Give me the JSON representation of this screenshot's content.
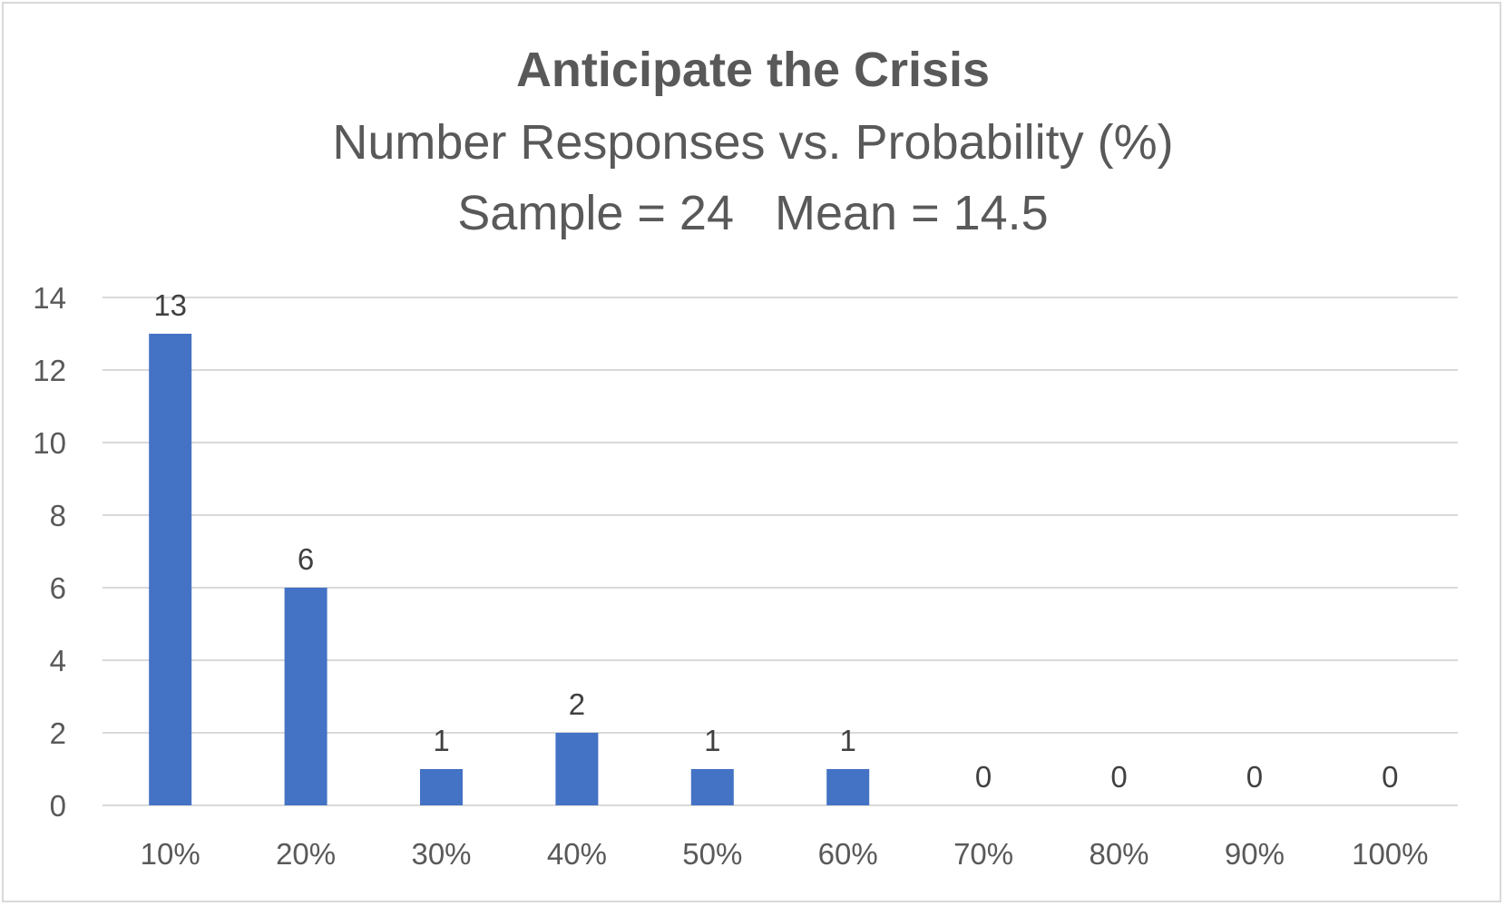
{
  "chart_data": {
    "type": "bar",
    "title": "Anticipate the Crisis",
    "subtitle": "Number Responses vs. Probability (%)",
    "subtitle2": "Sample = 24   Mean = 14.5",
    "categories": [
      "10%",
      "20%",
      "30%",
      "40%",
      "50%",
      "60%",
      "70%",
      "80%",
      "90%",
      "100%"
    ],
    "values": [
      13,
      6,
      1,
      2,
      1,
      1,
      0,
      0,
      0,
      0
    ],
    "ylim": [
      0,
      14
    ],
    "yticks": [
      "0",
      "2",
      "4",
      "6",
      "8",
      "10",
      "12",
      "14"
    ],
    "grid": true,
    "data_labels": true,
    "bar_color": "#4472c4"
  }
}
